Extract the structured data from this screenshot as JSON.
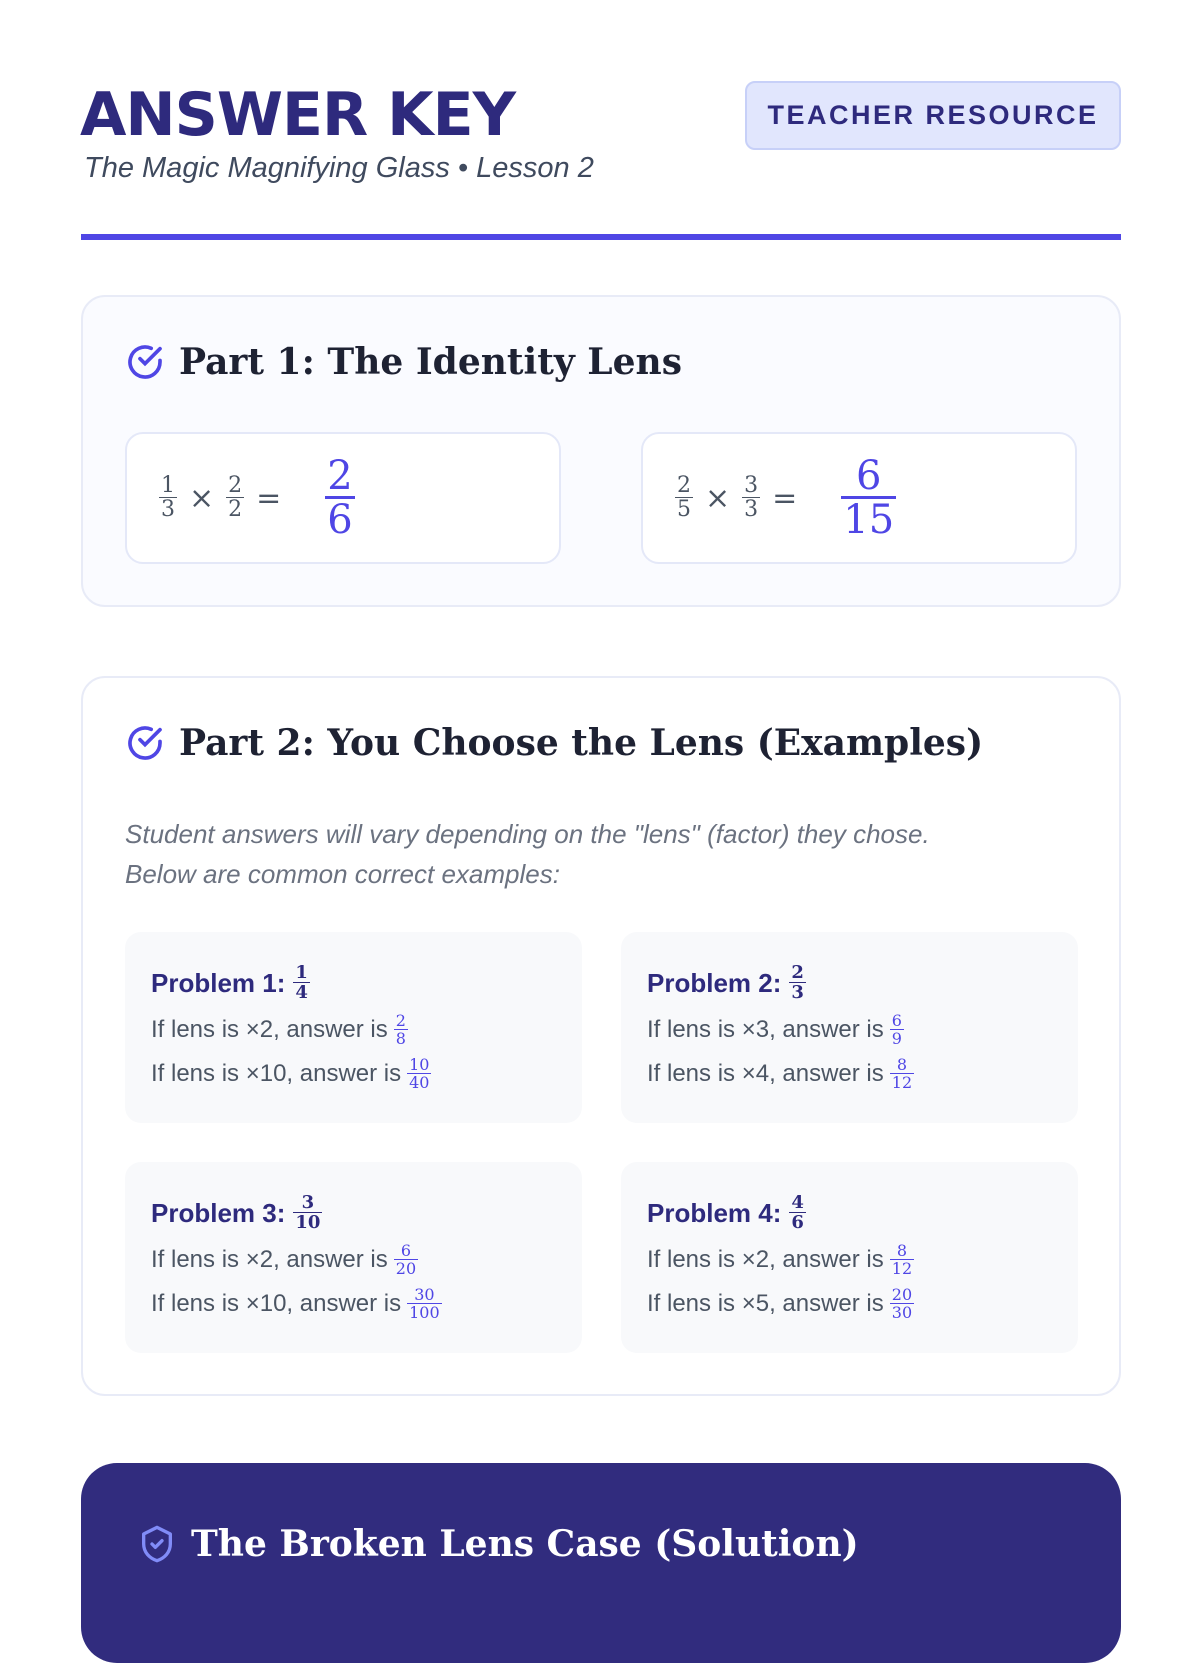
{
  "header": {
    "title": "ANSWER KEY",
    "subtitle": "The Magic Magnifying Glass • Lesson 2",
    "badge": "TEACHER RESOURCE"
  },
  "colors": {
    "accent": "#4f46e5",
    "navy": "#312c7e"
  },
  "part1": {
    "heading": "Part 1: The Identity Lens",
    "icon": "check-circle-icon",
    "equations": [
      {
        "a": {
          "n": "1",
          "d": "3"
        },
        "b": {
          "n": "2",
          "d": "2"
        },
        "op": "×",
        "eq": "=",
        "ans": {
          "n": "2",
          "d": "6"
        }
      },
      {
        "a": {
          "n": "2",
          "d": "5"
        },
        "b": {
          "n": "3",
          "d": "3"
        },
        "op": "×",
        "eq": "=",
        "ans": {
          "n": "6",
          "d": "15"
        }
      }
    ]
  },
  "part2": {
    "heading": "Part 2: You Choose the Lens (Examples)",
    "icon": "check-circle-icon",
    "note1": "Student answers will vary depending on the \"lens\" (factor) they chose.",
    "note2": "Below are common correct examples:",
    "problems": [
      {
        "label": "Problem 1:",
        "f": {
          "n": "1",
          "d": "4"
        },
        "lines": [
          {
            "pre": "If lens is ×2, answer is",
            "n": "2",
            "d": "8"
          },
          {
            "pre": "If lens is ×10, answer is",
            "n": "10",
            "d": "40"
          }
        ]
      },
      {
        "label": "Problem 2:",
        "f": {
          "n": "2",
          "d": "3"
        },
        "lines": [
          {
            "pre": "If lens is ×3, answer is",
            "n": "6",
            "d": "9"
          },
          {
            "pre": "If lens is ×4, answer is",
            "n": "8",
            "d": "12"
          }
        ]
      },
      {
        "label": "Problem 3:",
        "f": {
          "n": "3",
          "d": "10"
        },
        "lines": [
          {
            "pre": "If lens is ×2, answer is",
            "n": "6",
            "d": "20"
          },
          {
            "pre": "If lens is ×10, answer is",
            "n": "30",
            "d": "100"
          }
        ]
      },
      {
        "label": "Problem 4:",
        "f": {
          "n": "4",
          "d": "6"
        },
        "lines": [
          {
            "pre": "If lens is ×2, answer is",
            "n": "8",
            "d": "12"
          },
          {
            "pre": "If lens is ×5, answer is",
            "n": "20",
            "d": "30"
          }
        ]
      }
    ]
  },
  "solution": {
    "heading": "The Broken Lens Case (Solution)",
    "icon": "shield-check-icon"
  }
}
